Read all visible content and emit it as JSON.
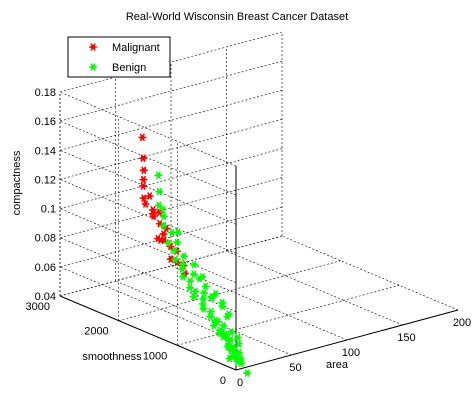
{
  "chart_data": {
    "type": "scatter",
    "title": "Real-World Wisconsin Breast Cancer Dataset",
    "xlabel": "area",
    "ylabel": "smoothness",
    "zlabel": "compactness",
    "xlim": [
      0,
      200
    ],
    "ylim": [
      0,
      3000
    ],
    "zlim": [
      0.04,
      0.18
    ],
    "xticks": [
      0,
      50,
      100,
      150,
      200
    ],
    "yticks": [
      0,
      1000,
      2000,
      3000
    ],
    "zticks": [
      0.04,
      0.06,
      0.08,
      0.1,
      0.12,
      0.14,
      0.16,
      0.18
    ],
    "grid": true,
    "legend_position": "top-left",
    "series": [
      {
        "name": "Malignant",
        "color": "#ff0000",
        "marker": "asterisk",
        "points": [
          [
            24,
            2050,
            0.16
          ],
          [
            22,
            2000,
            0.147
          ],
          [
            20,
            1950,
            0.14
          ],
          [
            17,
            1900,
            0.135
          ],
          [
            14,
            1850,
            0.132
          ],
          [
            12,
            1800,
            0.125
          ],
          [
            11,
            1750,
            0.122
          ],
          [
            15,
            1700,
            0.118
          ],
          [
            13,
            1650,
            0.115
          ],
          [
            16,
            1600,
            0.11
          ],
          [
            19,
            1550,
            0.107
          ],
          [
            14,
            1500,
            0.105
          ],
          [
            12,
            1450,
            0.102
          ],
          [
            15,
            1400,
            0.098
          ],
          [
            18,
            1350,
            0.095
          ],
          [
            10,
            1300,
            0.092
          ],
          [
            13,
            1250,
            0.09
          ],
          [
            16,
            1200,
            0.088
          ],
          [
            20,
            1850,
            0.124
          ],
          [
            21,
            1700,
            0.115
          ],
          [
            14,
            1550,
            0.1
          ],
          [
            10,
            1600,
            0.118
          ],
          [
            9,
            1500,
            0.103
          ],
          [
            12,
            1100,
            0.085
          ]
        ]
      },
      {
        "name": "Benign",
        "color": "#00ff00",
        "marker": "asterisk",
        "points": [
          [
            12,
            1550,
            0.145
          ],
          [
            10,
            1500,
            0.135
          ],
          [
            7,
            1450,
            0.127
          ],
          [
            9,
            1400,
            0.12
          ],
          [
            6,
            1350,
            0.115
          ],
          [
            11,
            1300,
            0.11
          ],
          [
            5,
            1250,
            0.105
          ],
          [
            8,
            1200,
            0.1
          ],
          [
            6,
            1150,
            0.095
          ],
          [
            10,
            1100,
            0.092
          ],
          [
            7,
            1050,
            0.09
          ],
          [
            5,
            1000,
            0.086
          ],
          [
            9,
            950,
            0.083
          ],
          [
            6,
            900,
            0.08
          ],
          [
            8,
            850,
            0.078
          ],
          [
            4,
            800,
            0.076
          ],
          [
            10,
            750,
            0.074
          ],
          [
            7,
            700,
            0.072
          ],
          [
            5,
            650,
            0.07
          ],
          [
            9,
            600,
            0.068
          ],
          [
            6,
            550,
            0.066
          ],
          [
            8,
            500,
            0.064
          ],
          [
            4,
            450,
            0.062
          ],
          [
            11,
            420,
            0.061
          ],
          [
            7,
            400,
            0.059
          ],
          [
            5,
            380,
            0.058
          ],
          [
            9,
            350,
            0.057
          ],
          [
            6,
            330,
            0.056
          ],
          [
            8,
            300,
            0.055
          ],
          [
            10,
            280,
            0.054
          ],
          [
            7,
            260,
            0.052
          ],
          [
            5,
            240,
            0.051
          ],
          [
            9,
            220,
            0.05
          ],
          [
            6,
            200,
            0.049
          ],
          [
            8,
            180,
            0.048
          ],
          [
            11,
            160,
            0.047
          ],
          [
            4,
            150,
            0.046
          ],
          [
            7,
            130,
            0.045
          ],
          [
            10,
            110,
            0.044
          ],
          [
            6,
            90,
            0.043
          ],
          [
            8,
            300,
            0.07
          ],
          [
            5,
            500,
            0.08
          ],
          [
            7,
            650,
            0.085
          ],
          [
            9,
            400,
            0.075
          ],
          [
            10,
            900,
            0.095
          ],
          [
            6,
            1000,
            0.1
          ],
          [
            4,
            700,
            0.09
          ],
          [
            3,
            600,
            0.082
          ],
          [
            12,
            800,
            0.088
          ],
          [
            11,
            1200,
            0.112
          ],
          [
            8,
            1400,
            0.125
          ],
          [
            5,
            1100,
            0.108
          ],
          [
            9,
            250,
            0.06
          ],
          [
            6,
            420,
            0.065
          ],
          [
            12,
            350,
            0.07
          ],
          [
            3,
            300,
            0.06
          ],
          [
            15,
            250,
            0.055
          ],
          [
            13,
            200,
            0.052
          ],
          [
            2,
            150,
            0.045
          ],
          [
            14,
            500,
            0.075
          ],
          [
            2,
            -150,
            0.04
          ],
          [
            16,
            650,
            0.078
          ],
          [
            8,
            60,
            0.042
          ],
          [
            10,
            600,
            0.078
          ],
          [
            7,
            850,
            0.09
          ]
        ]
      }
    ]
  }
}
